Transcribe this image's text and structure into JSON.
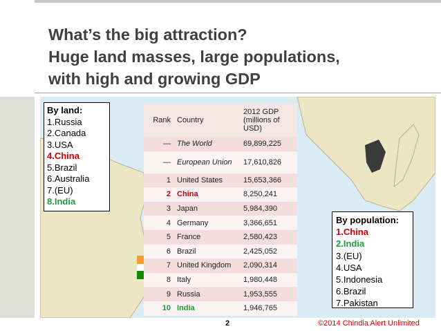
{
  "slide": {
    "title_lines": [
      "What’s the big attraction?",
      "Huge land masses, large populations,",
      "with high and growing GDP"
    ],
    "page_number": "2",
    "copyright": "©2014 Chindia Alert Unlimited"
  },
  "land_box": {
    "heading": "By land:",
    "items": [
      "1.Russia",
      "2.Canada",
      "3.USA",
      "4.China",
      "5.Brazil",
      "6.Australia",
      "7.(EU)",
      "8.India"
    ]
  },
  "population_box": {
    "heading": "By population:",
    "items": [
      "1.China",
      "2.India",
      "3.(EU)",
      "4.USA",
      "5.Indonesia",
      "6.Brazil",
      "7.Pakistan"
    ]
  },
  "gdp_table": {
    "headers": {
      "rank": "Rank",
      "country": "Country",
      "gdp": "2012 GDP (millions of USD)"
    },
    "rows": [
      {
        "rank": "—",
        "country": "The World",
        "gdp": "69,899,225"
      },
      {
        "rank": "—",
        "country": "European Union",
        "gdp": "17,610,826"
      },
      {
        "rank": "1",
        "country": "United States",
        "gdp": "15,653,366"
      },
      {
        "rank": "2",
        "country": "China",
        "gdp": "8,250,241"
      },
      {
        "rank": "3",
        "country": "Japan",
        "gdp": "5,984,390"
      },
      {
        "rank": "4",
        "country": "Germany",
        "gdp": "3,366,651"
      },
      {
        "rank": "5",
        "country": "France",
        "gdp": "2,580,423"
      },
      {
        "rank": "6",
        "country": "Brazil",
        "gdp": "2,425,052"
      },
      {
        "rank": "7",
        "country": "United Kingdom",
        "gdp": "2,090,314"
      },
      {
        "rank": "8",
        "country": "Italy",
        "gdp": "1,980,448"
      },
      {
        "rank": "9",
        "country": "Russia",
        "gdp": "1,953,555"
      },
      {
        "rank": "10",
        "country": "India",
        "gdp": "1,946,765"
      }
    ]
  },
  "colors": {
    "title": "#404040",
    "highlight_china": "#cc0000",
    "highlight_india": "#1f9a3a",
    "map_land": "#ede6c4",
    "map_water": "#d9ecf4"
  }
}
